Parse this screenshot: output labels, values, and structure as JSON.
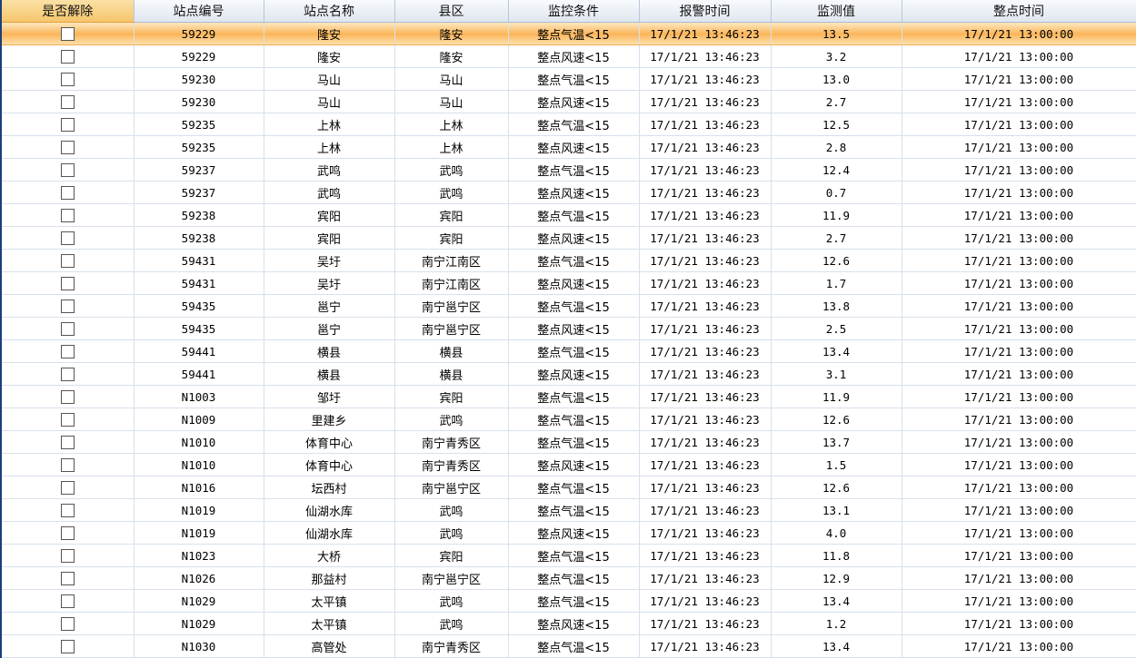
{
  "columns": [
    "是否解除",
    "站点编号",
    "站点名称",
    "县区",
    "监控条件",
    "报警时间",
    "监测值",
    "整点时间"
  ],
  "selected_row": 0,
  "accent_color": "#fbb55a",
  "rows": [
    {
      "released": false,
      "id": "59229",
      "name": "隆安",
      "county": "隆安",
      "condition": "整点气温<15",
      "alarm_time": "17/1/21 13:46:23",
      "value": "13.5",
      "hour_time": "17/1/21 13:00:00"
    },
    {
      "released": false,
      "id": "59229",
      "name": "隆安",
      "county": "隆安",
      "condition": "整点风速<15",
      "alarm_time": "17/1/21 13:46:23",
      "value": "3.2",
      "hour_time": "17/1/21 13:00:00"
    },
    {
      "released": false,
      "id": "59230",
      "name": "马山",
      "county": "马山",
      "condition": "整点气温<15",
      "alarm_time": "17/1/21 13:46:23",
      "value": "13.0",
      "hour_time": "17/1/21 13:00:00"
    },
    {
      "released": false,
      "id": "59230",
      "name": "马山",
      "county": "马山",
      "condition": "整点风速<15",
      "alarm_time": "17/1/21 13:46:23",
      "value": "2.7",
      "hour_time": "17/1/21 13:00:00"
    },
    {
      "released": false,
      "id": "59235",
      "name": "上林",
      "county": "上林",
      "condition": "整点气温<15",
      "alarm_time": "17/1/21 13:46:23",
      "value": "12.5",
      "hour_time": "17/1/21 13:00:00"
    },
    {
      "released": false,
      "id": "59235",
      "name": "上林",
      "county": "上林",
      "condition": "整点风速<15",
      "alarm_time": "17/1/21 13:46:23",
      "value": "2.8",
      "hour_time": "17/1/21 13:00:00"
    },
    {
      "released": false,
      "id": "59237",
      "name": "武鸣",
      "county": "武鸣",
      "condition": "整点气温<15",
      "alarm_time": "17/1/21 13:46:23",
      "value": "12.4",
      "hour_time": "17/1/21 13:00:00"
    },
    {
      "released": false,
      "id": "59237",
      "name": "武鸣",
      "county": "武鸣",
      "condition": "整点风速<15",
      "alarm_time": "17/1/21 13:46:23",
      "value": "0.7",
      "hour_time": "17/1/21 13:00:00"
    },
    {
      "released": false,
      "id": "59238",
      "name": "宾阳",
      "county": "宾阳",
      "condition": "整点气温<15",
      "alarm_time": "17/1/21 13:46:23",
      "value": "11.9",
      "hour_time": "17/1/21 13:00:00"
    },
    {
      "released": false,
      "id": "59238",
      "name": "宾阳",
      "county": "宾阳",
      "condition": "整点风速<15",
      "alarm_time": "17/1/21 13:46:23",
      "value": "2.7",
      "hour_time": "17/1/21 13:00:00"
    },
    {
      "released": false,
      "id": "59431",
      "name": "吴圩",
      "county": "南宁江南区",
      "condition": "整点气温<15",
      "alarm_time": "17/1/21 13:46:23",
      "value": "12.6",
      "hour_time": "17/1/21 13:00:00"
    },
    {
      "released": false,
      "id": "59431",
      "name": "吴圩",
      "county": "南宁江南区",
      "condition": "整点风速<15",
      "alarm_time": "17/1/21 13:46:23",
      "value": "1.7",
      "hour_time": "17/1/21 13:00:00"
    },
    {
      "released": false,
      "id": "59435",
      "name": "邕宁",
      "county": "南宁邕宁区",
      "condition": "整点气温<15",
      "alarm_time": "17/1/21 13:46:23",
      "value": "13.8",
      "hour_time": "17/1/21 13:00:00"
    },
    {
      "released": false,
      "id": "59435",
      "name": "邕宁",
      "county": "南宁邕宁区",
      "condition": "整点风速<15",
      "alarm_time": "17/1/21 13:46:23",
      "value": "2.5",
      "hour_time": "17/1/21 13:00:00"
    },
    {
      "released": false,
      "id": "59441",
      "name": "横县",
      "county": "横县",
      "condition": "整点气温<15",
      "alarm_time": "17/1/21 13:46:23",
      "value": "13.4",
      "hour_time": "17/1/21 13:00:00"
    },
    {
      "released": false,
      "id": "59441",
      "name": "横县",
      "county": "横县",
      "condition": "整点风速<15",
      "alarm_time": "17/1/21 13:46:23",
      "value": "3.1",
      "hour_time": "17/1/21 13:00:00"
    },
    {
      "released": false,
      "id": "N1003",
      "name": "邹圩",
      "county": "宾阳",
      "condition": "整点气温<15",
      "alarm_time": "17/1/21 13:46:23",
      "value": "11.9",
      "hour_time": "17/1/21 13:00:00"
    },
    {
      "released": false,
      "id": "N1009",
      "name": "里建乡",
      "county": "武鸣",
      "condition": "整点气温<15",
      "alarm_time": "17/1/21 13:46:23",
      "value": "12.6",
      "hour_time": "17/1/21 13:00:00"
    },
    {
      "released": false,
      "id": "N1010",
      "name": "体育中心",
      "county": "南宁青秀区",
      "condition": "整点气温<15",
      "alarm_time": "17/1/21 13:46:23",
      "value": "13.7",
      "hour_time": "17/1/21 13:00:00"
    },
    {
      "released": false,
      "id": "N1010",
      "name": "体育中心",
      "county": "南宁青秀区",
      "condition": "整点风速<15",
      "alarm_time": "17/1/21 13:46:23",
      "value": "1.5",
      "hour_time": "17/1/21 13:00:00"
    },
    {
      "released": false,
      "id": "N1016",
      "name": "坛西村",
      "county": "南宁邕宁区",
      "condition": "整点气温<15",
      "alarm_time": "17/1/21 13:46:23",
      "value": "12.6",
      "hour_time": "17/1/21 13:00:00"
    },
    {
      "released": false,
      "id": "N1019",
      "name": "仙湖水库",
      "county": "武鸣",
      "condition": "整点气温<15",
      "alarm_time": "17/1/21 13:46:23",
      "value": "13.1",
      "hour_time": "17/1/21 13:00:00"
    },
    {
      "released": false,
      "id": "N1019",
      "name": "仙湖水库",
      "county": "武鸣",
      "condition": "整点风速<15",
      "alarm_time": "17/1/21 13:46:23",
      "value": "4.0",
      "hour_time": "17/1/21 13:00:00"
    },
    {
      "released": false,
      "id": "N1023",
      "name": "大桥",
      "county": "宾阳",
      "condition": "整点气温<15",
      "alarm_time": "17/1/21 13:46:23",
      "value": "11.8",
      "hour_time": "17/1/21 13:00:00"
    },
    {
      "released": false,
      "id": "N1026",
      "name": "那益村",
      "county": "南宁邕宁区",
      "condition": "整点气温<15",
      "alarm_time": "17/1/21 13:46:23",
      "value": "12.9",
      "hour_time": "17/1/21 13:00:00"
    },
    {
      "released": false,
      "id": "N1029",
      "name": "太平镇",
      "county": "武鸣",
      "condition": "整点气温<15",
      "alarm_time": "17/1/21 13:46:23",
      "value": "13.4",
      "hour_time": "17/1/21 13:00:00"
    },
    {
      "released": false,
      "id": "N1029",
      "name": "太平镇",
      "county": "武鸣",
      "condition": "整点风速<15",
      "alarm_time": "17/1/21 13:46:23",
      "value": "1.2",
      "hour_time": "17/1/21 13:00:00"
    },
    {
      "released": false,
      "id": "N1030",
      "name": "高管处",
      "county": "南宁青秀区",
      "condition": "整点气温<15",
      "alarm_time": "17/1/21 13:46:23",
      "value": "13.4",
      "hour_time": "17/1/21 13:00:00"
    }
  ]
}
